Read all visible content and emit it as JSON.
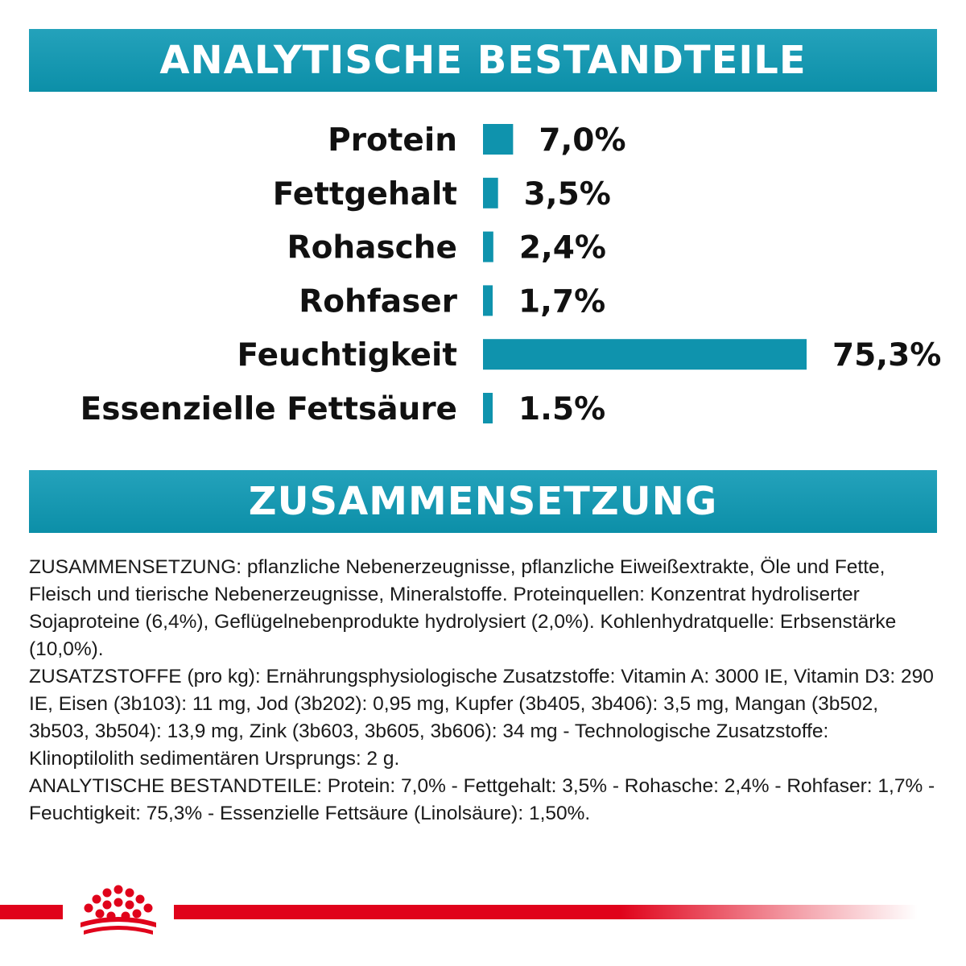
{
  "analytics_banner": {
    "title": "ANALYTISCHE BESTANDTEILE"
  },
  "chart_data": {
    "type": "bar",
    "orientation": "horizontal",
    "categories": [
      "Protein",
      "Fettgehalt",
      "Rohasche",
      "Rohfaser",
      "Feuchtigkeit",
      "Essenzielle Fettsäure"
    ],
    "values": [
      7.0,
      3.5,
      2.4,
      1.7,
      75.3,
      1.5
    ],
    "value_labels": [
      "7,0%",
      "3,5%",
      "2,4%",
      "1,7%",
      "75,3%",
      "1.5%"
    ],
    "unit": "%",
    "bar_color": "#0f93ad",
    "grid": false,
    "legend": "none",
    "title": "",
    "xlabel": "",
    "ylabel": ""
  },
  "composition_banner": {
    "title": "ZUSAMMENSETZUNG"
  },
  "composition": {
    "paragraphs": [
      "ZUSAMMENSETZUNG: pflanzliche Nebenerzeugnisse, pflanzliche Eiweißextrakte, Öle und Fette, Fleisch und tierische Nebenerzeugnisse, Mineralstoffe. Proteinquellen: Konzentrat hydroliserter Sojaproteine (6,4%), Geflügelnebenprodukte hydrolysiert (2,0%). Kohlenhydratquelle: Erbsenstärke (10,0%).",
      "ZUSATZSTOFFE (pro kg): Ernährungsphysiologische Zusatzstoffe: Vitamin A: 3000 IE, Vitamin D3: 290 IE, Eisen (3b103): 11 mg, Jod (3b202): 0,95 mg, Kupfer (3b405, 3b406): 3,5 mg, Mangan (3b502, 3b503, 3b504): 13,9 mg, Zink (3b603, 3b605, 3b606): 34 mg - Technologische Zusatzstoffe: Klinoptilolith sedimentären Ursprungs: 2 g.",
      "ANALYTISCHE BESTANDTEILE: Protein: 7,0% - Fettgehalt: 3,5% - Rohasche: 2,4% - Rohfaser: 1,7% - Feuchtigkeit: 75,3% - Essenzielle Fettsäure (Linolsäure): 1,50%."
    ]
  },
  "footer": {
    "logo_icon": "crown-icon",
    "brand_color": "#e0031b"
  }
}
